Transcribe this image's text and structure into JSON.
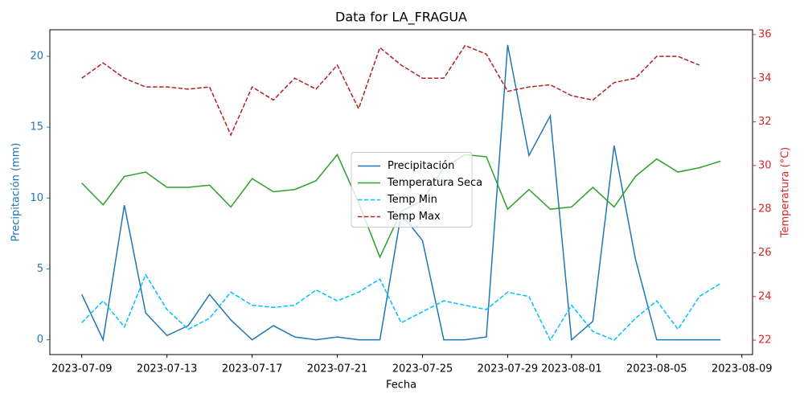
{
  "chart_data": {
    "type": "line",
    "title": "Data for LA_FRAGUA",
    "xlabel": "Fecha",
    "ylabel": "Precipitación (mm)",
    "y2label": "Temperatura (°C)",
    "ylabel_color": "#1f77b4",
    "y2label_color": "#d62728",
    "legend": "center",
    "x": [
      "2023-07-09",
      "2023-07-10",
      "2023-07-11",
      "2023-07-12",
      "2023-07-13",
      "2023-07-14",
      "2023-07-15",
      "2023-07-16",
      "2023-07-17",
      "2023-07-18",
      "2023-07-19",
      "2023-07-20",
      "2023-07-21",
      "2023-07-22",
      "2023-07-23",
      "2023-07-24",
      "2023-07-25",
      "2023-07-26",
      "2023-07-27",
      "2023-07-28",
      "2023-07-29",
      "2023-07-30",
      "2023-07-31",
      "2023-08-01",
      "2023-08-02",
      "2023-08-03",
      "2023-08-04",
      "2023-08-05",
      "2023-08-06",
      "2023-08-07",
      "2023-08-08"
    ],
    "xlim": [
      "2023-07-07T12:00Z",
      "2023-08-09T12:00Z"
    ],
    "xticks": [
      "2023-07-09",
      "2023-07-13",
      "2023-07-17",
      "2023-07-21",
      "2023-07-25",
      "2023-07-29",
      "2023-08-01",
      "2023-08-05",
      "2023-08-09"
    ],
    "ylim": [
      -1.04,
      21.87
    ],
    "yticks": [
      0,
      5,
      10,
      15,
      20
    ],
    "y2lim": [
      21.34,
      36.22
    ],
    "y2ticks": [
      22,
      24,
      26,
      28,
      30,
      32,
      34,
      36
    ],
    "series": [
      {
        "name": "Precipitación",
        "color": "#1f77b4",
        "dashed": false,
        "values": [
          3.2,
          0,
          9.5,
          1.9,
          0.3,
          1.0,
          3.2,
          1.4,
          0,
          1.0,
          0.2,
          0,
          0.2,
          0,
          0,
          8.9,
          7.0,
          0,
          0,
          0.2,
          20.8,
          13.0,
          15.8,
          0,
          1.3,
          13.7,
          5.7,
          0,
          0,
          0,
          0
        ]
      },
      {
        "name": "Temperatura Seca",
        "color": "#2ca02c",
        "dashed": false,
        "axis": "y2",
        "values": [
          29.2,
          28.2,
          29.5,
          29.7,
          29.0,
          29.0,
          29.1,
          28.1,
          29.4,
          28.8,
          28.9,
          29.3,
          30.5,
          28.3,
          25.8,
          27.9,
          28.4,
          29.9,
          30.5,
          30.4,
          28.0,
          28.9,
          28.0,
          28.1,
          29.0,
          28.1,
          29.5,
          30.3,
          29.7,
          29.9,
          30.2
        ]
      },
      {
        "name": "Temp Min",
        "color": "#00bfff",
        "dashed": true,
        "axis": "y2",
        "values": [
          22.8,
          23.8,
          22.6,
          25.0,
          23.4,
          22.5,
          23.0,
          24.2,
          23.6,
          23.5,
          23.6,
          24.3,
          23.8,
          24.2,
          24.8,
          22.8,
          23.3,
          23.8,
          23.6,
          23.4,
          24.2,
          24.0,
          22.0,
          23.6,
          22.4,
          22.0,
          23.0,
          23.8,
          22.5,
          24.0,
          24.6
        ]
      },
      {
        "name": "Temp Max",
        "color": "#b22222",
        "dashed": true,
        "axis": "y2",
        "values": [
          34.0,
          34.7,
          34.0,
          33.6,
          33.6,
          33.5,
          33.6,
          31.4,
          33.6,
          33.0,
          34.0,
          33.5,
          34.6,
          32.6,
          35.4,
          34.6,
          34.0,
          34.0,
          35.5,
          35.1,
          33.4,
          33.6,
          33.7,
          33.2,
          33.0,
          33.8,
          34.0,
          35.0,
          35.0,
          34.6,
          null
        ]
      }
    ]
  }
}
